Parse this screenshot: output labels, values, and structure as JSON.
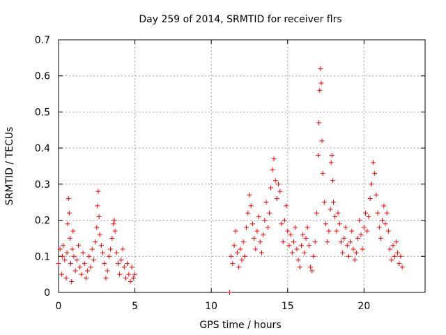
{
  "chart_data": {
    "type": "scatter",
    "title": "Day 259 of 2014, SRMTID for receiver flrs",
    "xlabel": "GPS time / hours",
    "ylabel": "SRMTID / TECUs",
    "xlim": [
      0,
      24
    ],
    "ylim": [
      0,
      0.7
    ],
    "x_ticks": [
      0,
      5,
      10,
      15,
      20
    ],
    "y_ticks": [
      0,
      0.1,
      0.2,
      0.3,
      0.4,
      0.5,
      0.6,
      0.7
    ],
    "x_tick_labels": [
      "0",
      "5",
      "10",
      "15",
      "20"
    ],
    "y_tick_labels": [
      "0",
      "0.1",
      "0.2",
      "0.3",
      "0.4",
      "0.5",
      "0.6",
      "0.7"
    ],
    "grid": true,
    "marker": "+",
    "color": "#ff0000",
    "series": [
      {
        "name": "SRMTID",
        "points": [
          [
            0.0,
            0.08
          ],
          [
            0.1,
            0.12
          ],
          [
            0.2,
            0.05
          ],
          [
            0.25,
            0.1
          ],
          [
            0.3,
            0.13
          ],
          [
            0.4,
            0.09
          ],
          [
            0.5,
            0.04
          ],
          [
            0.55,
            0.11
          ],
          [
            0.6,
            0.19
          ],
          [
            0.65,
            0.26
          ],
          [
            0.7,
            0.22
          ],
          [
            0.75,
            0.15
          ],
          [
            0.8,
            0.08
          ],
          [
            0.85,
            0.03
          ],
          [
            0.9,
            0.12
          ],
          [
            0.95,
            0.17
          ],
          [
            1.0,
            0.1
          ],
          [
            1.1,
            0.06
          ],
          [
            1.2,
            0.09
          ],
          [
            1.3,
            0.13
          ],
          [
            1.4,
            0.07
          ],
          [
            1.5,
            0.05
          ],
          [
            1.6,
            0.11
          ],
          [
            1.7,
            0.08
          ],
          [
            1.8,
            0.04
          ],
          [
            1.9,
            0.06
          ],
          [
            2.0,
            0.1
          ],
          [
            2.1,
            0.07
          ],
          [
            2.2,
            0.12
          ],
          [
            2.3,
            0.09
          ],
          [
            2.4,
            0.14
          ],
          [
            2.5,
            0.18
          ],
          [
            2.55,
            0.24
          ],
          [
            2.6,
            0.28
          ],
          [
            2.65,
            0.21
          ],
          [
            2.7,
            0.16
          ],
          [
            2.8,
            0.13
          ],
          [
            2.9,
            0.11
          ],
          [
            3.0,
            0.08
          ],
          [
            3.1,
            0.04
          ],
          [
            3.2,
            0.06
          ],
          [
            3.3,
            0.1
          ],
          [
            3.4,
            0.12
          ],
          [
            3.5,
            0.15
          ],
          [
            3.6,
            0.19
          ],
          [
            3.65,
            0.2
          ],
          [
            3.7,
            0.17
          ],
          [
            3.8,
            0.11
          ],
          [
            3.9,
            0.08
          ],
          [
            4.0,
            0.05
          ],
          [
            4.1,
            0.09
          ],
          [
            4.2,
            0.12
          ],
          [
            4.3,
            0.07
          ],
          [
            4.4,
            0.04
          ],
          [
            4.5,
            0.08
          ],
          [
            4.6,
            0.05
          ],
          [
            4.7,
            0.03
          ],
          [
            4.8,
            0.07
          ],
          [
            4.9,
            0.04
          ],
          [
            5.0,
            0.05
          ],
          [
            11.2,
            0.0
          ],
          [
            11.3,
            0.1
          ],
          [
            11.4,
            0.08
          ],
          [
            11.5,
            0.13
          ],
          [
            11.6,
            0.17
          ],
          [
            11.7,
            0.11
          ],
          [
            11.8,
            0.07
          ],
          [
            11.9,
            0.12
          ],
          [
            12.0,
            0.09
          ],
          [
            12.1,
            0.14
          ],
          [
            12.2,
            0.1
          ],
          [
            12.3,
            0.18
          ],
          [
            12.4,
            0.22
          ],
          [
            12.5,
            0.27
          ],
          [
            12.6,
            0.24
          ],
          [
            12.7,
            0.19
          ],
          [
            12.8,
            0.15
          ],
          [
            12.9,
            0.12
          ],
          [
            13.0,
            0.17
          ],
          [
            13.1,
            0.21
          ],
          [
            13.2,
            0.14
          ],
          [
            13.3,
            0.11
          ],
          [
            13.4,
            0.16
          ],
          [
            13.5,
            0.2
          ],
          [
            13.6,
            0.25
          ],
          [
            13.7,
            0.18
          ],
          [
            13.8,
            0.22
          ],
          [
            13.9,
            0.29
          ],
          [
            14.0,
            0.34
          ],
          [
            14.1,
            0.37
          ],
          [
            14.2,
            0.31
          ],
          [
            14.3,
            0.26
          ],
          [
            14.4,
            0.3
          ],
          [
            14.5,
            0.28
          ],
          [
            14.6,
            0.19
          ],
          [
            14.7,
            0.14
          ],
          [
            14.8,
            0.2
          ],
          [
            14.9,
            0.24
          ],
          [
            15.0,
            0.17
          ],
          [
            15.1,
            0.13
          ],
          [
            15.2,
            0.16
          ],
          [
            15.3,
            0.11
          ],
          [
            15.4,
            0.14
          ],
          [
            15.5,
            0.18
          ],
          [
            15.6,
            0.12
          ],
          [
            15.7,
            0.09
          ],
          [
            15.8,
            0.07
          ],
          [
            15.9,
            0.13
          ],
          [
            16.0,
            0.16
          ],
          [
            16.1,
            0.11
          ],
          [
            16.2,
            0.15
          ],
          [
            16.3,
            0.18
          ],
          [
            16.4,
            0.13
          ],
          [
            16.5,
            0.07
          ],
          [
            16.6,
            0.06
          ],
          [
            16.7,
            0.1
          ],
          [
            16.8,
            0.14
          ],
          [
            16.9,
            0.22
          ],
          [
            17.0,
            0.38
          ],
          [
            17.05,
            0.47
          ],
          [
            17.1,
            0.56
          ],
          [
            17.15,
            0.62
          ],
          [
            17.2,
            0.58
          ],
          [
            17.25,
            0.42
          ],
          [
            17.3,
            0.33
          ],
          [
            17.4,
            0.25
          ],
          [
            17.5,
            0.19
          ],
          [
            17.6,
            0.14
          ],
          [
            17.7,
            0.17
          ],
          [
            17.8,
            0.23
          ],
          [
            17.85,
            0.36
          ],
          [
            17.9,
            0.38
          ],
          [
            17.95,
            0.31
          ],
          [
            18.0,
            0.25
          ],
          [
            18.1,
            0.21
          ],
          [
            18.2,
            0.17
          ],
          [
            18.3,
            0.22
          ],
          [
            18.4,
            0.19
          ],
          [
            18.5,
            0.14
          ],
          [
            18.6,
            0.11
          ],
          [
            18.7,
            0.15
          ],
          [
            18.8,
            0.18
          ],
          [
            18.9,
            0.13
          ],
          [
            19.0,
            0.1
          ],
          [
            19.1,
            0.14
          ],
          [
            19.2,
            0.17
          ],
          [
            19.3,
            0.12
          ],
          [
            19.4,
            0.09
          ],
          [
            19.5,
            0.11
          ],
          [
            19.6,
            0.15
          ],
          [
            19.7,
            0.2
          ],
          [
            19.8,
            0.16
          ],
          [
            19.9,
            0.12
          ],
          [
            20.0,
            0.18
          ],
          [
            20.1,
            0.22
          ],
          [
            20.2,
            0.17
          ],
          [
            20.3,
            0.21
          ],
          [
            20.4,
            0.26
          ],
          [
            20.5,
            0.3
          ],
          [
            20.6,
            0.36
          ],
          [
            20.7,
            0.33
          ],
          [
            20.8,
            0.27
          ],
          [
            20.9,
            0.22
          ],
          [
            21.0,
            0.18
          ],
          [
            21.1,
            0.15
          ],
          [
            21.2,
            0.2
          ],
          [
            21.3,
            0.24
          ],
          [
            21.4,
            0.19
          ],
          [
            21.5,
            0.22
          ],
          [
            21.6,
            0.17
          ],
          [
            21.7,
            0.12
          ],
          [
            21.8,
            0.09
          ],
          [
            21.9,
            0.13
          ],
          [
            22.0,
            0.1
          ],
          [
            22.1,
            0.14
          ],
          [
            22.2,
            0.11
          ],
          [
            22.3,
            0.08
          ],
          [
            22.4,
            0.1
          ],
          [
            22.5,
            0.07
          ]
        ]
      }
    ]
  }
}
